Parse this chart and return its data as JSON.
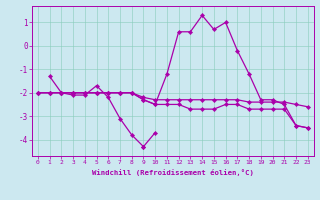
{
  "xlabel": "Windchill (Refroidissement éolien,°C)",
  "bg_color": "#cce8f0",
  "grid_color": "#aaddcc",
  "line_color": "#aa00aa",
  "xlim": [
    -0.5,
    23.5
  ],
  "ylim": [
    -4.7,
    1.7
  ],
  "yticks": [
    1,
    0,
    -1,
    -2,
    -3,
    -4
  ],
  "xticks": [
    0,
    1,
    2,
    3,
    4,
    5,
    6,
    7,
    8,
    9,
    10,
    11,
    12,
    13,
    14,
    15,
    16,
    17,
    18,
    19,
    20,
    21,
    22,
    23
  ],
  "series": [
    {
      "x": [
        1,
        2,
        3,
        4,
        5,
        6,
        7,
        8,
        9
      ],
      "y": [
        -1.3,
        -2.0,
        -2.1,
        -2.1,
        -1.7,
        -2.2,
        -3.1,
        -3.8,
        -4.3
      ]
    },
    {
      "x": [
        9,
        10
      ],
      "y": [
        -4.3,
        -3.7
      ]
    },
    {
      "x": [
        0,
        1,
        2,
        3,
        4,
        5,
        6,
        7,
        8,
        9,
        10,
        11,
        12,
        13,
        14,
        15,
        16,
        17,
        18,
        19,
        20,
        21,
        22,
        23
      ],
      "y": [
        -2.0,
        -2.0,
        -2.0,
        -2.0,
        -2.0,
        -2.0,
        -2.0,
        -2.0,
        -2.0,
        -2.2,
        -2.3,
        -2.3,
        -2.3,
        -2.3,
        -2.3,
        -2.3,
        -2.3,
        -2.3,
        -2.4,
        -2.4,
        -2.4,
        -2.4,
        -2.5,
        -2.6
      ]
    },
    {
      "x": [
        0,
        1,
        2,
        3,
        4,
        5,
        6,
        7,
        8,
        9,
        10,
        11,
        12,
        13,
        14,
        15,
        16,
        17,
        18,
        19,
        20,
        21,
        22,
        23
      ],
      "y": [
        -2.0,
        -2.0,
        -2.0,
        -2.0,
        -2.0,
        -2.0,
        -2.0,
        -2.0,
        -2.0,
        -2.3,
        -2.5,
        -1.2,
        0.6,
        0.6,
        1.3,
        0.7,
        1.0,
        -0.2,
        -1.2,
        -2.3,
        -2.3,
        -2.5,
        -3.4,
        -3.5
      ]
    },
    {
      "x": [
        0,
        1,
        2,
        3,
        4,
        5,
        6,
        7,
        8,
        9,
        10,
        11,
        12,
        13,
        14,
        15,
        16,
        17,
        18,
        19,
        20,
        21,
        22,
        23
      ],
      "y": [
        -2.0,
        -2.0,
        -2.0,
        -2.0,
        -2.0,
        -2.0,
        -2.0,
        -2.0,
        -2.0,
        -2.3,
        -2.5,
        -2.5,
        -2.5,
        -2.7,
        -2.7,
        -2.7,
        -2.5,
        -2.5,
        -2.7,
        -2.7,
        -2.7,
        -2.7,
        -3.4,
        -3.5
      ]
    }
  ]
}
